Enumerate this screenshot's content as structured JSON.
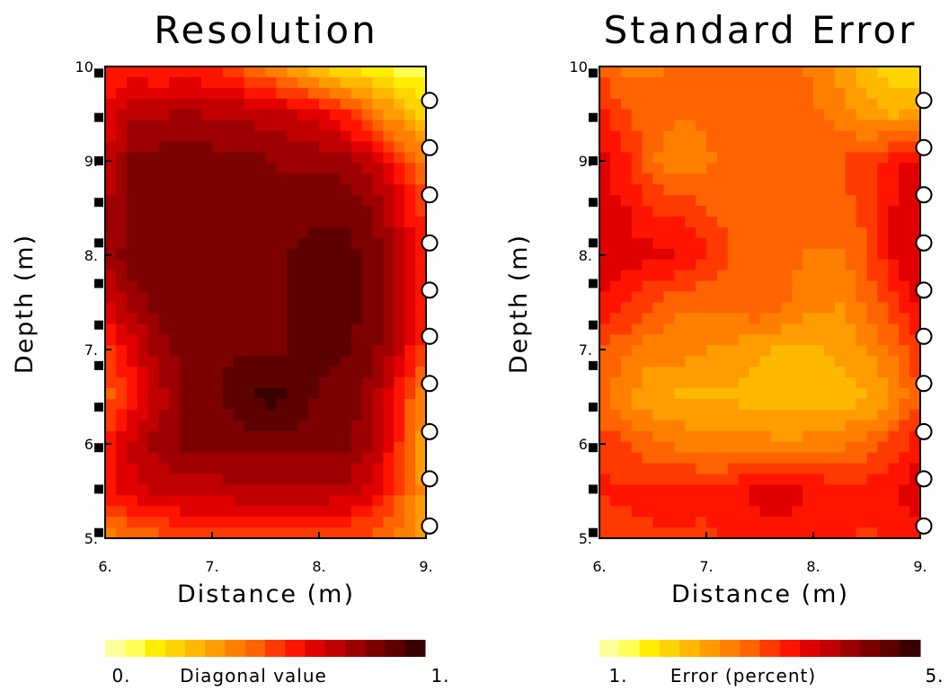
{
  "chart_data": [
    {
      "type": "heatmap",
      "title": "Resolution",
      "xlabel": "Distance (m)",
      "ylabel": "Depth (m)",
      "xlim": [
        6.0,
        9.0
      ],
      "ylim": [
        5.0,
        10.0
      ],
      "xticks": [
        "6.",
        "7.",
        "8.",
        "9."
      ],
      "yticks": [
        "5.",
        "6.",
        "7.",
        "8.",
        "9.",
        "10."
      ],
      "grid": false,
      "colorbar": {
        "min_label": "0.",
        "max_label": "1.",
        "label": "Diagonal value",
        "colors": [
          "#ffff99",
          "#ffff55",
          "#ffee00",
          "#ffd400",
          "#ffb800",
          "#ff9c00",
          "#ff8000",
          "#ff6400",
          "#ff3a00",
          "#ff1400",
          "#e10000",
          "#c00000",
          "#9d0000",
          "#7d0000",
          "#5c0000",
          "#3a0000"
        ]
      },
      "x": [
        6.0,
        6.25,
        6.5,
        6.75,
        7.0,
        7.25,
        7.5,
        7.75,
        8.0,
        8.25,
        8.5,
        8.75,
        9.0
      ],
      "y": [
        10.0,
        9.5,
        9.0,
        8.5,
        8.0,
        7.5,
        7.0,
        6.5,
        6.0,
        5.5,
        5.0
      ],
      "values": [
        [
          0.58,
          0.58,
          0.56,
          0.56,
          0.56,
          0.5,
          0.42,
          0.32,
          0.24,
          0.18,
          0.14,
          0.1,
          0.08
        ],
        [
          0.62,
          0.74,
          0.74,
          0.76,
          0.74,
          0.74,
          0.72,
          0.7,
          0.66,
          0.56,
          0.44,
          0.32,
          0.22
        ],
        [
          0.68,
          0.82,
          0.84,
          0.86,
          0.84,
          0.82,
          0.82,
          0.8,
          0.8,
          0.78,
          0.7,
          0.56,
          0.4
        ],
        [
          0.74,
          0.84,
          0.84,
          0.82,
          0.82,
          0.82,
          0.82,
          0.84,
          0.86,
          0.86,
          0.82,
          0.68,
          0.52
        ],
        [
          0.78,
          0.84,
          0.86,
          0.86,
          0.84,
          0.84,
          0.86,
          0.88,
          0.9,
          0.9,
          0.86,
          0.7,
          0.56
        ],
        [
          0.66,
          0.78,
          0.84,
          0.86,
          0.86,
          0.84,
          0.86,
          0.88,
          0.9,
          0.9,
          0.86,
          0.72,
          0.56
        ],
        [
          0.54,
          0.66,
          0.78,
          0.84,
          0.86,
          0.86,
          0.86,
          0.88,
          0.9,
          0.88,
          0.84,
          0.7,
          0.52
        ],
        [
          0.46,
          0.58,
          0.72,
          0.82,
          0.86,
          0.92,
          0.96,
          0.94,
          0.86,
          0.84,
          0.78,
          0.58,
          0.36
        ],
        [
          0.56,
          0.7,
          0.78,
          0.82,
          0.82,
          0.84,
          0.84,
          0.84,
          0.84,
          0.84,
          0.76,
          0.56,
          0.32
        ],
        [
          0.6,
          0.66,
          0.7,
          0.72,
          0.72,
          0.74,
          0.74,
          0.74,
          0.74,
          0.72,
          0.66,
          0.52,
          0.34
        ],
        [
          0.4,
          0.44,
          0.48,
          0.5,
          0.5,
          0.5,
          0.52,
          0.52,
          0.52,
          0.5,
          0.48,
          0.42,
          0.32
        ]
      ],
      "markers": {
        "squares_at_x": 6.0,
        "squares_depths": [
          9.93,
          9.46,
          9.0,
          8.56,
          8.13,
          7.7,
          7.26,
          6.83,
          6.39,
          5.96,
          5.52,
          5.06
        ],
        "circles_at_x": 9.0,
        "circles_depths": [
          9.64,
          9.14,
          8.64,
          8.13,
          7.63,
          7.14,
          6.64,
          6.13,
          5.63,
          5.13
        ]
      }
    },
    {
      "type": "heatmap",
      "title": "Standard Error",
      "xlabel": "Distance (m)",
      "ylabel": "Depth (m)",
      "xlim": [
        6.0,
        9.0
      ],
      "ylim": [
        5.0,
        10.0
      ],
      "xticks": [
        "6.",
        "7.",
        "8.",
        "9."
      ],
      "yticks": [
        "5.",
        "6.",
        "7.",
        "8.",
        "9.",
        "10."
      ],
      "grid": false,
      "colorbar": {
        "min_label": "1.",
        "max_label": "5.",
        "label": "Error (percent)",
        "colors": [
          "#ffff99",
          "#ffff55",
          "#ffee00",
          "#ffd400",
          "#ffb800",
          "#ff9c00",
          "#ff8000",
          "#ff6400",
          "#ff3a00",
          "#ff1400",
          "#e10000",
          "#c00000",
          "#9d0000",
          "#7d0000",
          "#5c0000",
          "#3a0000"
        ]
      },
      "x": [
        6.0,
        6.25,
        6.5,
        6.75,
        7.0,
        7.25,
        7.5,
        7.75,
        8.0,
        8.25,
        8.5,
        8.75,
        9.0
      ],
      "y": [
        10.0,
        9.5,
        9.0,
        8.5,
        8.0,
        7.5,
        7.0,
        6.5,
        6.0,
        5.5,
        5.0
      ],
      "values": [
        [
          2.9,
          2.7,
          2.7,
          2.8,
          2.8,
          3.0,
          3.0,
          2.8,
          2.7,
          2.4,
          2.0,
          1.8,
          1.7
        ],
        [
          3.4,
          3.0,
          2.9,
          2.8,
          2.8,
          2.9,
          2.9,
          2.9,
          2.8,
          2.6,
          2.4,
          2.2,
          2.4
        ],
        [
          3.6,
          3.3,
          2.8,
          2.5,
          2.7,
          2.9,
          2.9,
          2.9,
          3.0,
          3.0,
          3.1,
          3.4,
          3.6
        ],
        [
          3.6,
          3.5,
          3.2,
          3.2,
          3.0,
          2.9,
          2.9,
          3.0,
          3.0,
          2.9,
          3.1,
          3.5,
          3.8
        ],
        [
          3.7,
          3.6,
          3.6,
          3.5,
          3.3,
          2.9,
          2.9,
          2.8,
          2.7,
          2.7,
          3.0,
          3.5,
          3.8
        ],
        [
          3.5,
          3.3,
          3.0,
          2.8,
          2.8,
          2.9,
          3.0,
          2.8,
          2.6,
          2.5,
          2.8,
          3.2,
          3.6
        ],
        [
          3.0,
          2.8,
          2.6,
          2.6,
          2.5,
          2.4,
          2.3,
          2.2,
          2.2,
          2.3,
          2.5,
          2.8,
          3.2
        ],
        [
          2.8,
          2.5,
          2.3,
          2.2,
          2.2,
          2.2,
          2.1,
          2.1,
          2.1,
          2.1,
          2.2,
          2.5,
          3.0
        ],
        [
          3.2,
          3.0,
          2.8,
          2.7,
          2.6,
          2.6,
          2.6,
          2.5,
          2.6,
          2.7,
          2.8,
          3.1,
          3.4
        ],
        [
          3.3,
          3.3,
          3.4,
          3.4,
          3.3,
          3.4,
          3.6,
          3.6,
          3.5,
          3.4,
          3.4,
          3.5,
          3.7
        ],
        [
          3.0,
          3.1,
          3.2,
          3.2,
          3.2,
          3.3,
          3.4,
          3.4,
          3.3,
          3.3,
          3.2,
          3.3,
          3.4
        ]
      ],
      "markers": {
        "squares_at_x": 6.0,
        "squares_depths": [
          9.93,
          9.46,
          9.0,
          8.56,
          8.13,
          7.7,
          7.26,
          6.83,
          6.39,
          5.96,
          5.52,
          5.06
        ],
        "circles_at_x": 9.0,
        "circles_depths": [
          9.64,
          9.14,
          8.64,
          8.13,
          7.63,
          7.14,
          6.64,
          6.13,
          5.63,
          5.13
        ]
      }
    }
  ]
}
